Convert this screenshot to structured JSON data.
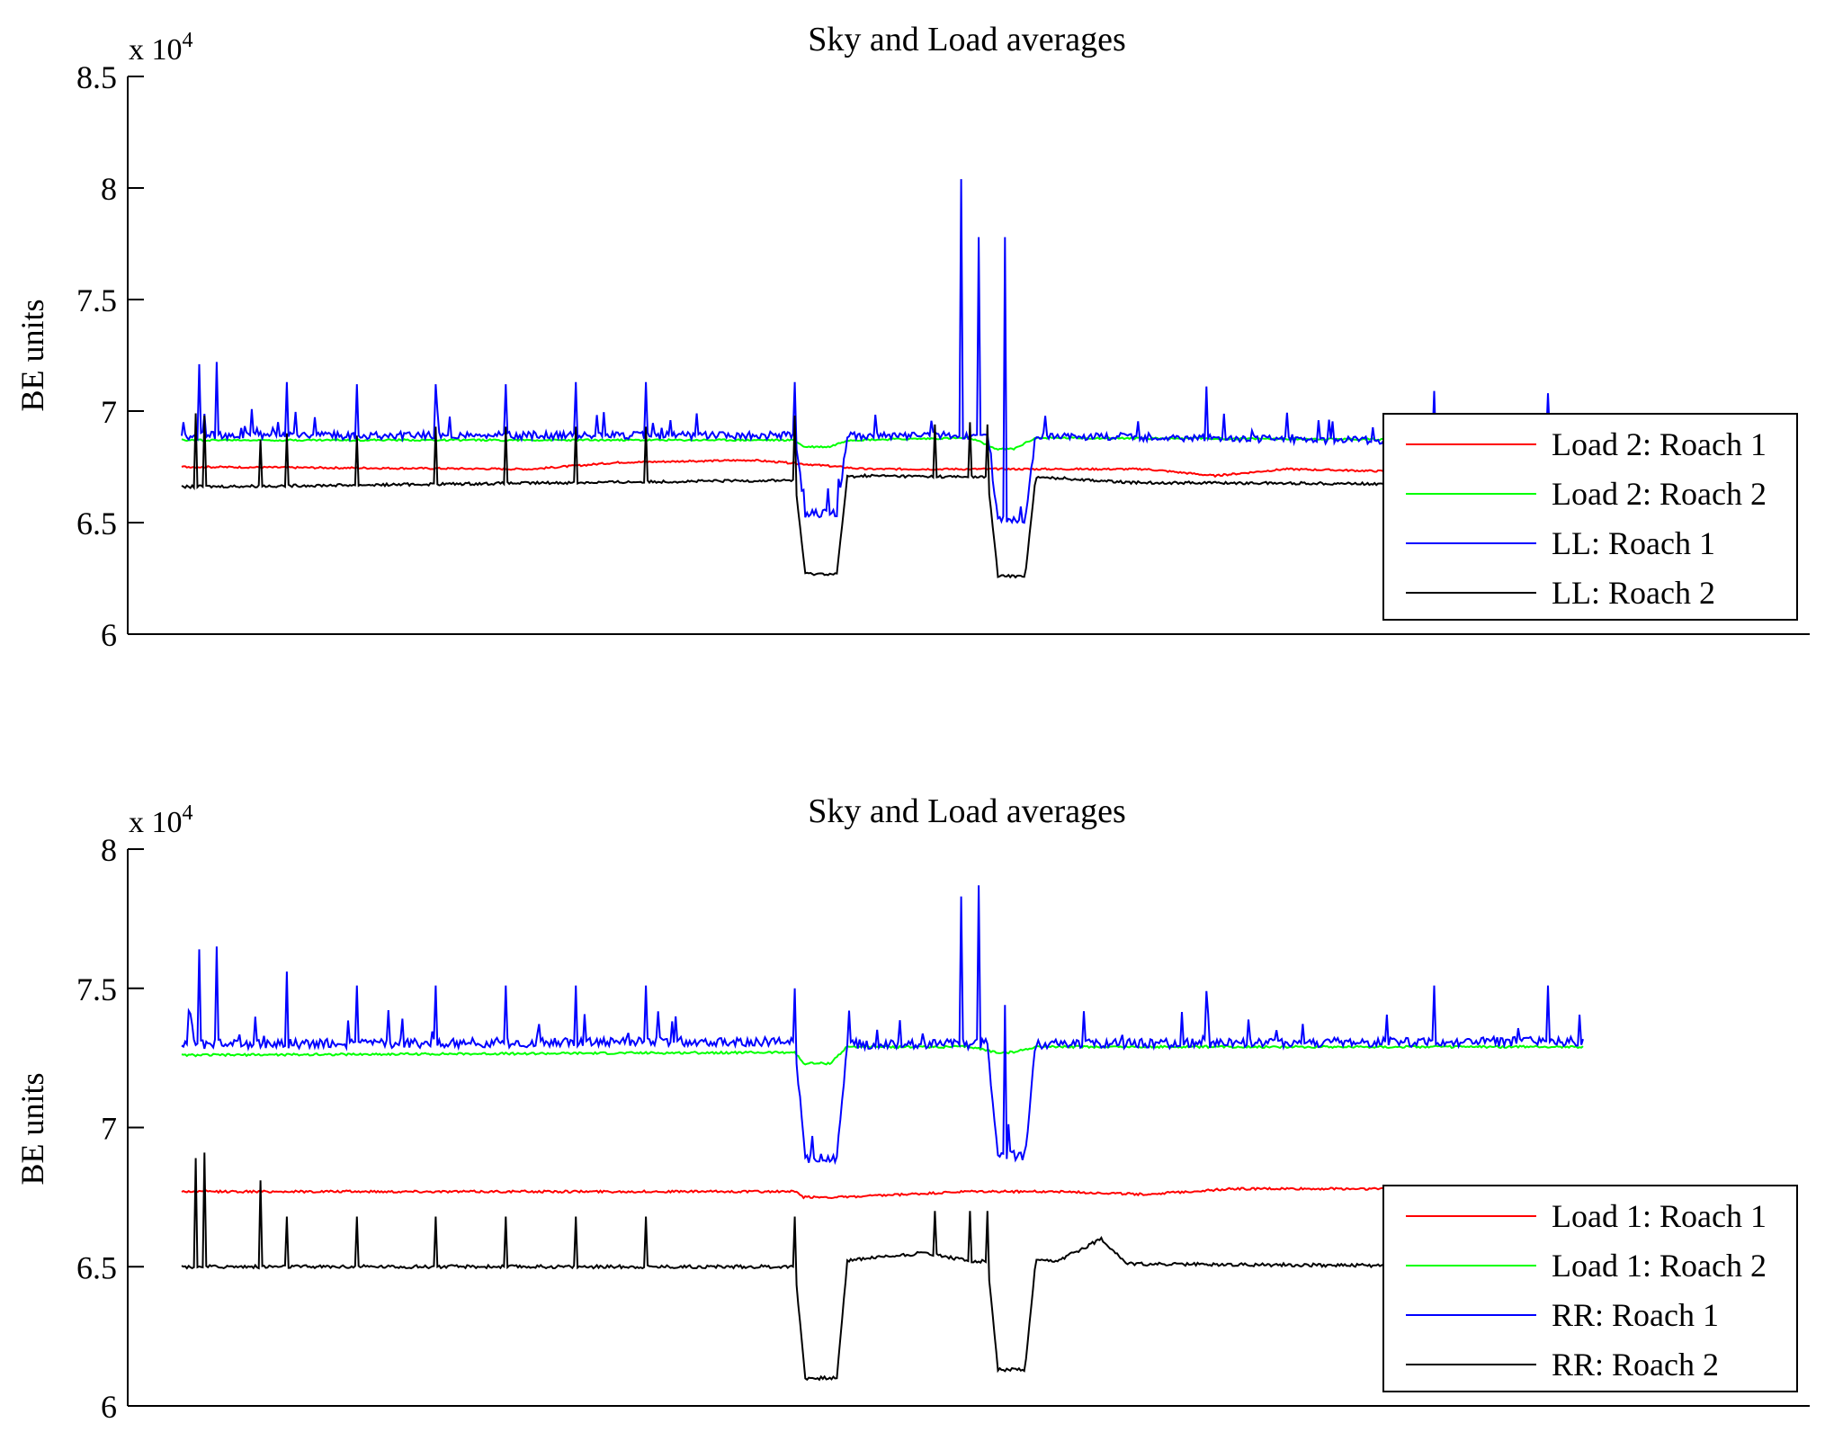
{
  "chart_data": [
    {
      "type": "line",
      "title": "Sky and Load averages",
      "xlabel": "",
      "ylabel": "BE units",
      "multiplier": "x 10",
      "multiplier_exp": "4",
      "ylim": [
        6,
        8.5
      ],
      "yticks": [
        "6",
        "6.5",
        "7",
        "7.5",
        "8",
        "8.5"
      ],
      "xlim": [
        0,
        1600
      ],
      "grid": false,
      "legend_position": "bottom-right",
      "series": [
        {
          "name": "Load 2: Roach 1",
          "color": "#ff0000",
          "base": 6.75,
          "dips": [],
          "segments": [
            [
              0,
              6.75
            ],
            [
              400,
              6.74
            ],
            [
              500,
              6.77
            ],
            [
              650,
              6.78
            ],
            [
              720,
              6.76
            ],
            [
              780,
              6.74
            ],
            [
              1000,
              6.74
            ],
            [
              1100,
              6.74
            ],
            [
              1180,
              6.71
            ],
            [
              1260,
              6.74
            ],
            [
              1500,
              6.72
            ],
            [
              1600,
              6.72
            ]
          ],
          "dip_points": [
            [
              710,
              6.74
            ],
            [
              750,
              6.74
            ],
            [
              915,
              6.71
            ],
            [
              945,
              6.71
            ]
          ]
        },
        {
          "name": "Load 2: Roach 2",
          "color": "#00ff00",
          "base": 6.87,
          "segments": [
            [
              0,
              6.87
            ],
            [
              700,
              6.87
            ],
            [
              710,
              6.84
            ],
            [
              740,
              6.84
            ],
            [
              760,
              6.87
            ],
            [
              900,
              6.88
            ],
            [
              930,
              6.83
            ],
            [
              950,
              6.83
            ],
            [
              975,
              6.88
            ],
            [
              1600,
              6.87
            ]
          ]
        },
        {
          "name": "LL: Roach 1",
          "color": "#0000ff",
          "base": 6.89,
          "segments": [
            [
              0,
              6.89
            ],
            [
              700,
              6.89
            ],
            [
              1000,
              6.89
            ],
            [
              1500,
              6.86
            ],
            [
              1600,
              6.89
            ]
          ],
          "dips": [
            [
              700,
              760,
              6.54
            ],
            [
              920,
              975,
              6.51
            ]
          ],
          "spikes": [
            [
              20,
              7.21
            ],
            [
              40,
              7.22
            ],
            [
              120,
              7.13
            ],
            [
              200,
              7.12
            ],
            [
              290,
              7.12
            ],
            [
              370,
              7.12
            ],
            [
              450,
              7.13
            ],
            [
              530,
              7.13
            ],
            [
              700,
              7.13
            ],
            [
              890,
              8.04
            ],
            [
              910,
              7.78
            ],
            [
              940,
              7.78
            ],
            [
              1170,
              7.11
            ],
            [
              1430,
              7.09
            ],
            [
              1560,
              7.08
            ]
          ]
        },
        {
          "name": "LL: Roach 2",
          "color": "#000000",
          "base": 6.67,
          "segments": [
            [
              0,
              6.66
            ],
            [
              700,
              6.69
            ],
            [
              780,
              6.71
            ],
            [
              1000,
              6.7
            ],
            [
              1080,
              6.68
            ],
            [
              1600,
              6.67
            ]
          ],
          "dips": [
            [
              700,
              760,
              6.27
            ],
            [
              920,
              975,
              6.26
            ]
          ],
          "spikes": [
            [
              15,
              6.99
            ],
            [
              25,
              6.98
            ],
            [
              90,
              6.87
            ],
            [
              120,
              6.9
            ],
            [
              200,
              6.89
            ],
            [
              290,
              6.93
            ],
            [
              370,
              6.93
            ],
            [
              450,
              6.93
            ],
            [
              530,
              6.93
            ],
            [
              700,
              6.98
            ],
            [
              860,
              6.94
            ],
            [
              900,
              6.95
            ],
            [
              920,
              6.94
            ]
          ]
        }
      ]
    },
    {
      "type": "line",
      "title": "Sky and Load averages",
      "xlabel": "",
      "ylabel": "BE units",
      "multiplier": "x 10",
      "multiplier_exp": "4",
      "ylim": [
        6,
        8
      ],
      "yticks": [
        "6",
        "6.5",
        "7",
        "7.5",
        "8"
      ],
      "xlim": [
        0,
        1600
      ],
      "grid": false,
      "legend_position": "bottom-right",
      "series": [
        {
          "name": "Load 1: Roach 1",
          "color": "#ff0000",
          "base": 6.77,
          "segments": [
            [
              0,
              6.77
            ],
            [
              700,
              6.77
            ],
            [
              710,
              6.75
            ],
            [
              760,
              6.75
            ],
            [
              900,
              6.77
            ],
            [
              1000,
              6.77
            ],
            [
              1100,
              6.76
            ],
            [
              1200,
              6.78
            ],
            [
              1600,
              6.78
            ]
          ]
        },
        {
          "name": "Load 1: Roach 2",
          "color": "#00ff00",
          "base": 7.26,
          "segments": [
            [
              0,
              7.26
            ],
            [
              700,
              7.27
            ],
            [
              710,
              7.23
            ],
            [
              740,
              7.23
            ],
            [
              760,
              7.29
            ],
            [
              900,
              7.29
            ],
            [
              930,
              7.27
            ],
            [
              950,
              7.27
            ],
            [
              975,
              7.29
            ],
            [
              1600,
              7.29
            ]
          ]
        },
        {
          "name": "RR: Roach 1",
          "color": "#0000ff",
          "base": 7.31,
          "segments": [
            [
              0,
              7.3
            ],
            [
              700,
              7.31
            ],
            [
              780,
              7.3
            ],
            [
              1000,
              7.3
            ],
            [
              1600,
              7.31
            ]
          ],
          "dips": [
            [
              700,
              760,
              6.89
            ],
            [
              920,
              975,
              6.9
            ]
          ],
          "spikes": [
            [
              20,
              7.64
            ],
            [
              40,
              7.65
            ],
            [
              120,
              7.56
            ],
            [
              200,
              7.51
            ],
            [
              290,
              7.51
            ],
            [
              370,
              7.51
            ],
            [
              450,
              7.51
            ],
            [
              530,
              7.51
            ],
            [
              700,
              7.5
            ],
            [
              890,
              7.83
            ],
            [
              910,
              7.87
            ],
            [
              940,
              7.44
            ],
            [
              1170,
              7.49
            ],
            [
              1430,
              7.51
            ],
            [
              1560,
              7.51
            ]
          ]
        },
        {
          "name": "RR: Roach 2",
          "color": "#000000",
          "base": 6.5,
          "segments": [
            [
              0,
              6.5
            ],
            [
              700,
              6.5
            ],
            [
              780,
              6.53
            ],
            [
              850,
              6.55
            ],
            [
              900,
              6.52
            ],
            [
              1000,
              6.52
            ],
            [
              1050,
              6.6
            ],
            [
              1080,
              6.51
            ],
            [
              1600,
              6.5
            ]
          ],
          "dips": [
            [
              700,
              760,
              6.1
            ],
            [
              920,
              975,
              6.13
            ]
          ],
          "spikes": [
            [
              15,
              6.89
            ],
            [
              25,
              6.91
            ],
            [
              90,
              6.81
            ],
            [
              120,
              6.68
            ],
            [
              200,
              6.68
            ],
            [
              290,
              6.68
            ],
            [
              370,
              6.68
            ],
            [
              450,
              6.68
            ],
            [
              530,
              6.68
            ],
            [
              700,
              6.68
            ],
            [
              860,
              6.7
            ],
            [
              900,
              6.7
            ],
            [
              920,
              6.7
            ]
          ]
        }
      ]
    }
  ]
}
